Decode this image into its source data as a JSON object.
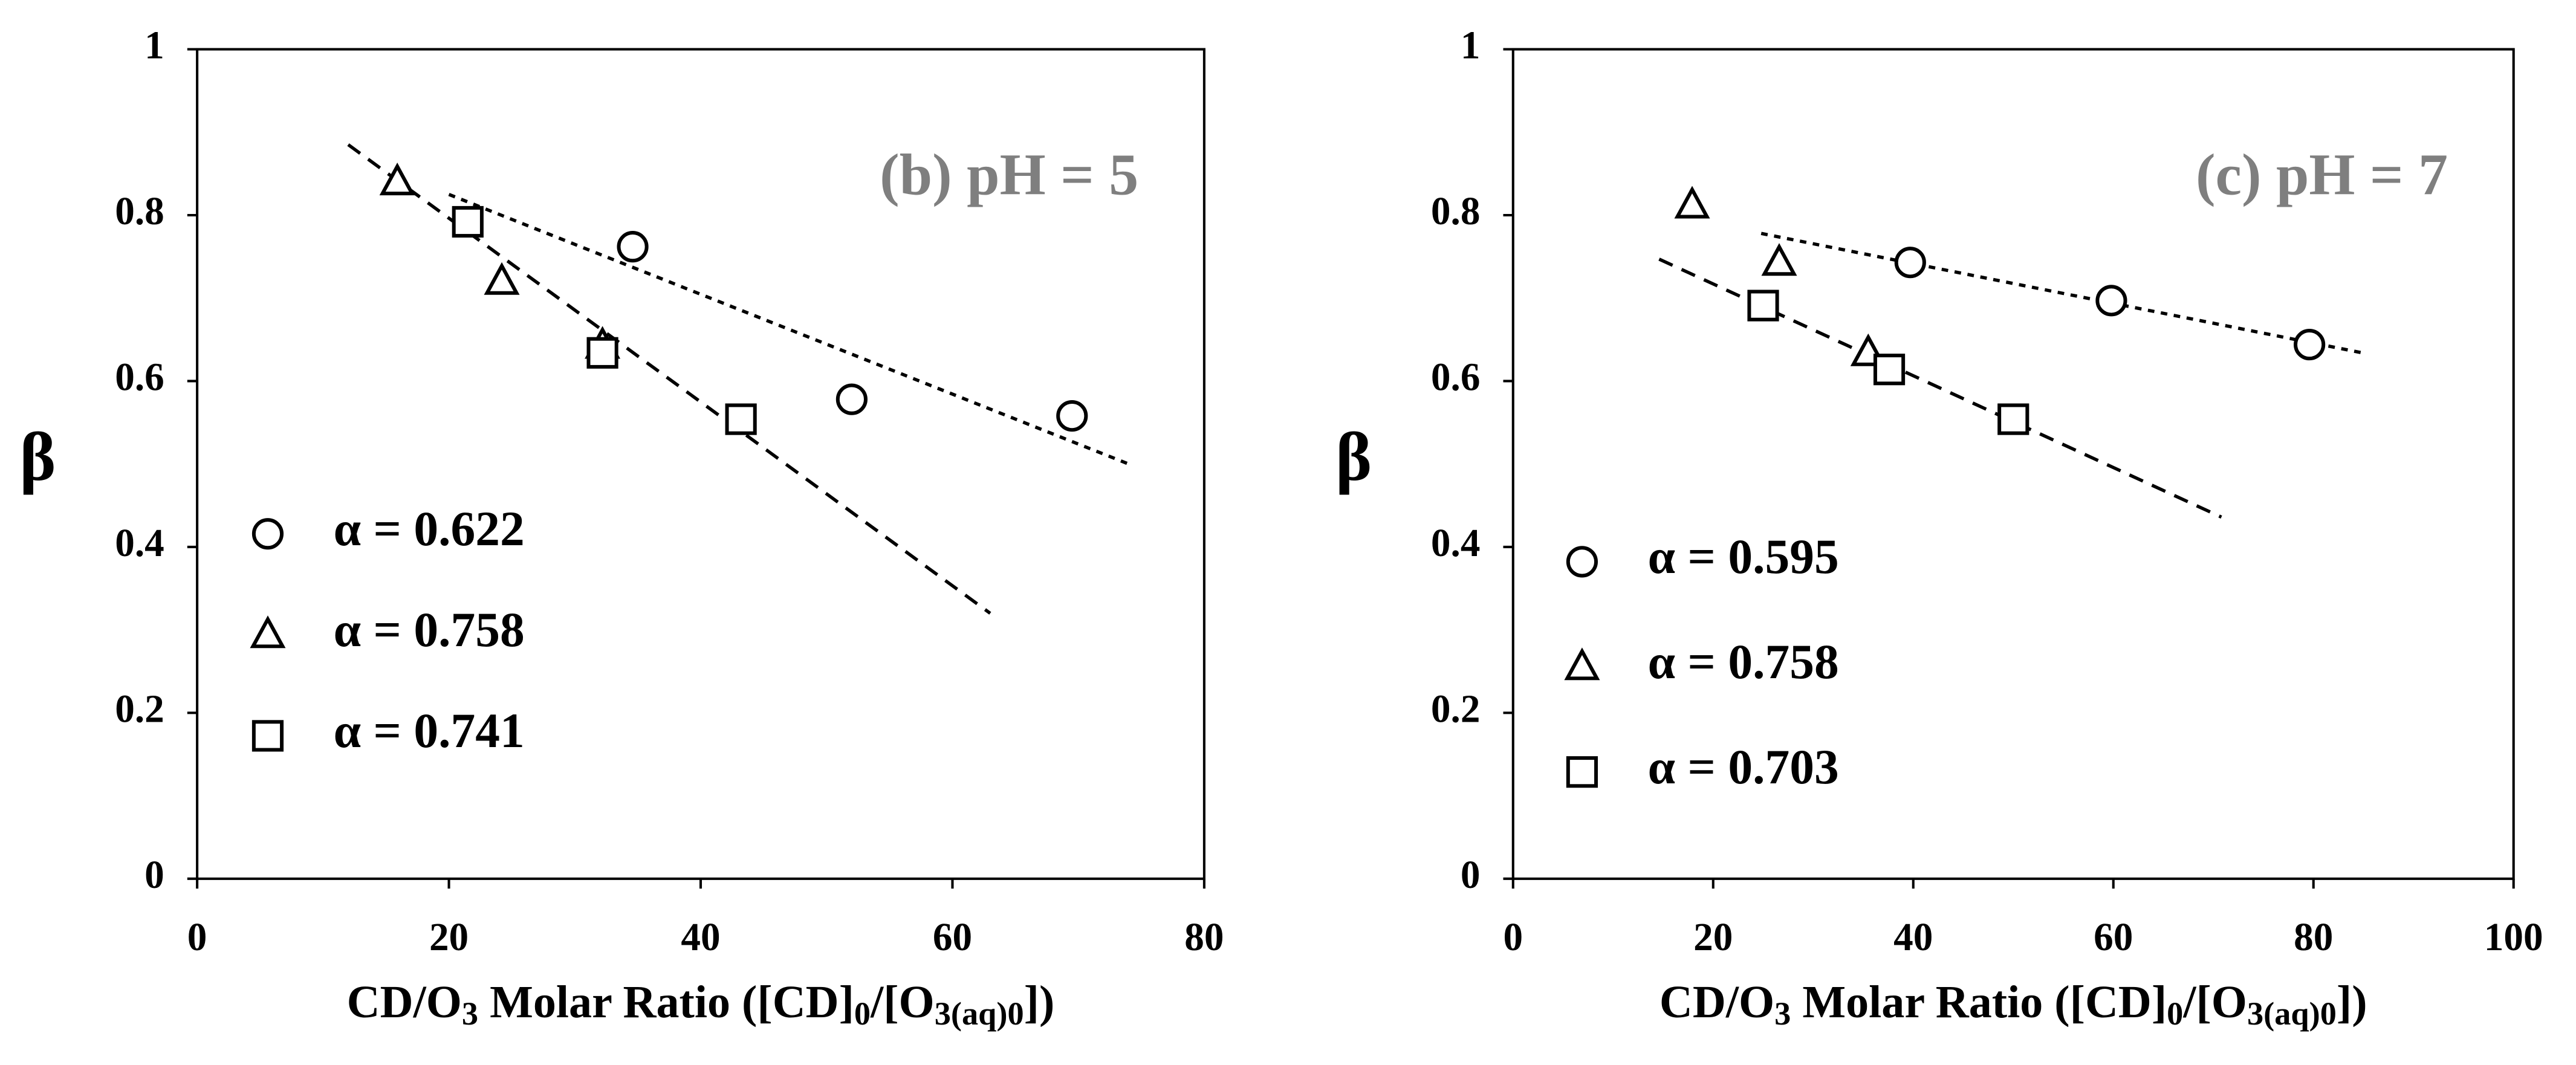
{
  "chart_data": [
    {
      "type": "scatter",
      "annotation": "(b) pH = 5",
      "xlabel": [
        "CD/O",
        "3",
        " Molar Ratio ([CD]",
        "0",
        "/[O",
        "3(aq)0",
        "])"
      ],
      "ylabel": "β",
      "xlim": [
        0,
        80
      ],
      "xticks": [
        0,
        20,
        40,
        60,
        80
      ],
      "ylim": [
        0,
        1
      ],
      "yticks": [
        0,
        0.2,
        0.4,
        0.6,
        0.8,
        1
      ],
      "legend": "lower left",
      "series": [
        {
          "name": "α = 0.622",
          "marker": "circle",
          "color": "#000000",
          "x": [
            34.6,
            52.0,
            69.5
          ],
          "values": [
            0.762,
            0.578,
            0.558
          ]
        },
        {
          "name": "α = 0.758",
          "marker": "triangle",
          "color": "#000000",
          "x": [
            15.9,
            24.2,
            32.2
          ],
          "values": [
            0.84,
            0.72,
            0.643
          ]
        },
        {
          "name": "α = 0.741",
          "marker": "square",
          "color": "#000000",
          "x": [
            21.5,
            32.2,
            43.2
          ],
          "values": [
            0.792,
            0.634,
            0.554
          ]
        }
      ],
      "trendlines": [
        {
          "dash": "4,4",
          "x": [
            20,
            74
          ],
          "values": [
            0.825,
            0.5
          ]
        },
        {
          "dash": "9,6",
          "x": [
            12,
            63
          ],
          "values": [
            0.885,
            0.32
          ]
        }
      ]
    },
    {
      "type": "scatter",
      "annotation": "(c) pH = 7",
      "xlabel": [
        "CD/O",
        "3",
        " Molar Ratio ([CD]",
        "0",
        "/[O",
        "3(aq)0",
        "])"
      ],
      "ylabel": "β",
      "xlim": [
        0,
        100
      ],
      "xticks": [
        0,
        20,
        40,
        60,
        80,
        100
      ],
      "ylim": [
        0,
        1
      ],
      "yticks": [
        0,
        0.2,
        0.4,
        0.6,
        0.8,
        1
      ],
      "legend": "lower left",
      "series": [
        {
          "name": "α = 0.595",
          "marker": "circle",
          "color": "#000000",
          "x": [
            39.7,
            59.8,
            79.6
          ],
          "values": [
            0.743,
            0.697,
            0.644
          ]
        },
        {
          "name": "α = 0.758",
          "marker": "triangle",
          "color": "#000000",
          "x": [
            17.9,
            26.6,
            35.5
          ],
          "values": [
            0.812,
            0.743,
            0.634
          ]
        },
        {
          "name": "α = 0.703",
          "marker": "square",
          "color": "#000000",
          "x": [
            25.0,
            37.6,
            50.0
          ],
          "values": [
            0.691,
            0.614,
            0.554
          ]
        }
      ],
      "trendlines": [
        {
          "dash": "4,4",
          "x": [
            24.8,
            84.9
          ],
          "values": [
            0.778,
            0.634
          ]
        },
        {
          "dash": "9,6",
          "x": [
            14.6,
            70.8
          ],
          "values": [
            0.747,
            0.436
          ]
        }
      ]
    }
  ]
}
